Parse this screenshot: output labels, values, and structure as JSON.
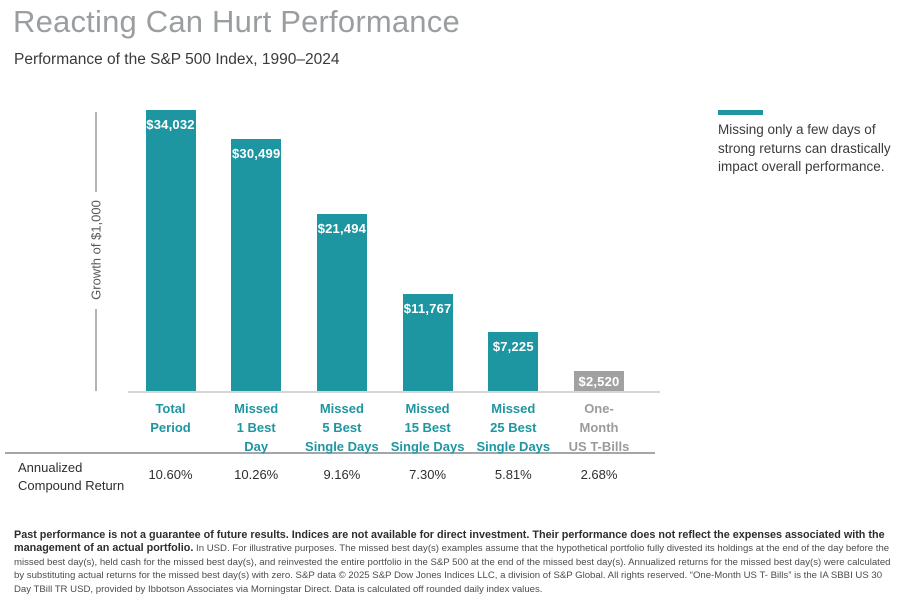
{
  "page": {
    "title": "Reacting Can Hurt Performance",
    "subtitle": "Performance of the S&P 500 Index, 1990–2024"
  },
  "chart_data": {
    "type": "bar",
    "title": "Reacting Can Hurt Performance",
    "subtitle": "Performance of the S&P 500 Index, 1990–2024",
    "xlabel": "",
    "ylabel": "Growth of $1,000",
    "ylim": [
      0,
      34032
    ],
    "grid": false,
    "categories": [
      "Total Period",
      "Missed 1 Best Day",
      "Missed 5 Best Single Days",
      "Missed 15 Best Single Days",
      "Missed 25 Best Single Days",
      "One-Month US T-Bills"
    ],
    "category_lines": [
      "Total\nPeriod",
      "Missed\n1 Best\nDay",
      "Missed\n5 Best\nSingle Days",
      "Missed\n15 Best\nSingle Days",
      "Missed\n25 Best\nSingle Days",
      "One-\nMonth\nUS T-Bills"
    ],
    "values": [
      34032,
      30499,
      21494,
      11767,
      7225,
      2520
    ],
    "value_labels": [
      "$34,032",
      "$30,499",
      "$21,494",
      "$11,767",
      "$7,225",
      "$2,520"
    ],
    "bar_colors": [
      "#1e96a1",
      "#1e96a1",
      "#1e96a1",
      "#1e96a1",
      "#1e96a1",
      "#a1a1a1"
    ],
    "category_colors": [
      "#1e96a1",
      "#1e96a1",
      "#1e96a1",
      "#1e96a1",
      "#1e96a1",
      "#9b9b9b"
    ],
    "annualized_row": {
      "label": "Annualized Compound Return",
      "values": [
        "10.60%",
        "10.26%",
        "9.16%",
        "7.30%",
        "5.81%",
        "2.68%"
      ]
    }
  },
  "annotation": {
    "text": "Missing only a few days of strong returns can drastically impact overall performance."
  },
  "footnote": {
    "bold_text": "Past performance is not a guarantee of future results. Indices are not available for direct investment. Their performance does not reflect the expenses associated with the management of an actual portfolio.",
    "regular_text": "In USD. For illustrative purposes. The missed best day(s) examples assume that the hypothetical portfolio fully divested its holdings at the end of the day before the missed best day(s), held cash for the missed best day(s), and reinvested the entire portfolio in the S&P 500 at the end of the missed best day(s). Annualized returns for the missed best day(s) were calculated by substituting actual returns for the missed best day(s) with zero. S&P data © 2025 S&P Dow Jones Indices LLC, a division of S&P Global. All rights reserved. “One-Month US T- Bills” is the IA SBBI US 30 Day TBill TR USD, provided by Ibbotson Associates via Morningstar Direct. Data is calculated off rounded daily index values."
  },
  "colors": {
    "teal_accent": "#1e96a1",
    "gray_bar": "#a1a1a1",
    "title_gray": "#9b9ea0",
    "axis_line": "#b3b3b3",
    "baseline": "#d6d6d6",
    "separator": "#a6a6a6",
    "dark_text": "#3a3a3a"
  }
}
